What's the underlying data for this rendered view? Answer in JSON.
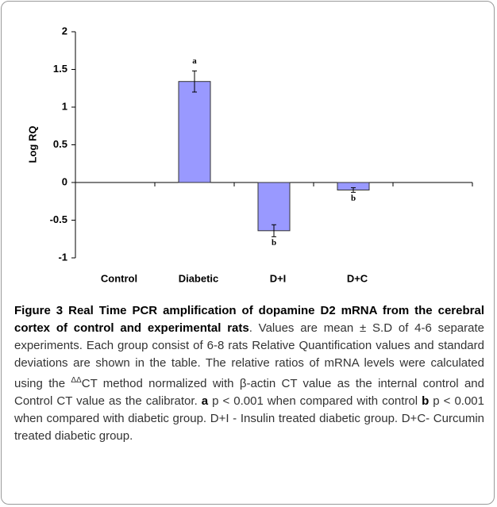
{
  "chart_data": {
    "type": "bar",
    "ylabel": "Log RQ",
    "categories": [
      "Control",
      "Diabetic",
      "D+I",
      "D+C"
    ],
    "values": [
      0,
      1.34,
      -0.64,
      -0.1
    ],
    "errors": [
      0,
      0.14,
      0.08,
      0.03
    ],
    "bar_labels": [
      null,
      "a",
      "b",
      "b"
    ],
    "color": "#9999ff",
    "ylim": [
      -1,
      2
    ],
    "yticks": [
      -1,
      -0.5,
      0,
      0.5,
      1,
      1.5,
      2
    ]
  },
  "caption": {
    "label": "Figure 3",
    "title": "Real Time PCR amplification of dopamine D2 mRNA from the cerebral cortex of control and experimental rats",
    "text1": ". Values are mean ± S.D of 4-6 separate experiments. Each group consist of 6-8 rats Relative Quantification values and standard deviations are shown in the table. The relative ratios of mRNA levels were calculated using the ",
    "sup": "ΔΔ",
    "text2": "CT method normalized with β-actin CT value as the internal control and Control CT value as the calibrator. ",
    "a": "a",
    "text3": " p < 0.001 when compared with control ",
    "b": "b",
    "text4": " p < 0.001 when compared with diabetic group. D+I - Insulin treated diabetic group. D+C- Curcumin treated diabetic group."
  }
}
